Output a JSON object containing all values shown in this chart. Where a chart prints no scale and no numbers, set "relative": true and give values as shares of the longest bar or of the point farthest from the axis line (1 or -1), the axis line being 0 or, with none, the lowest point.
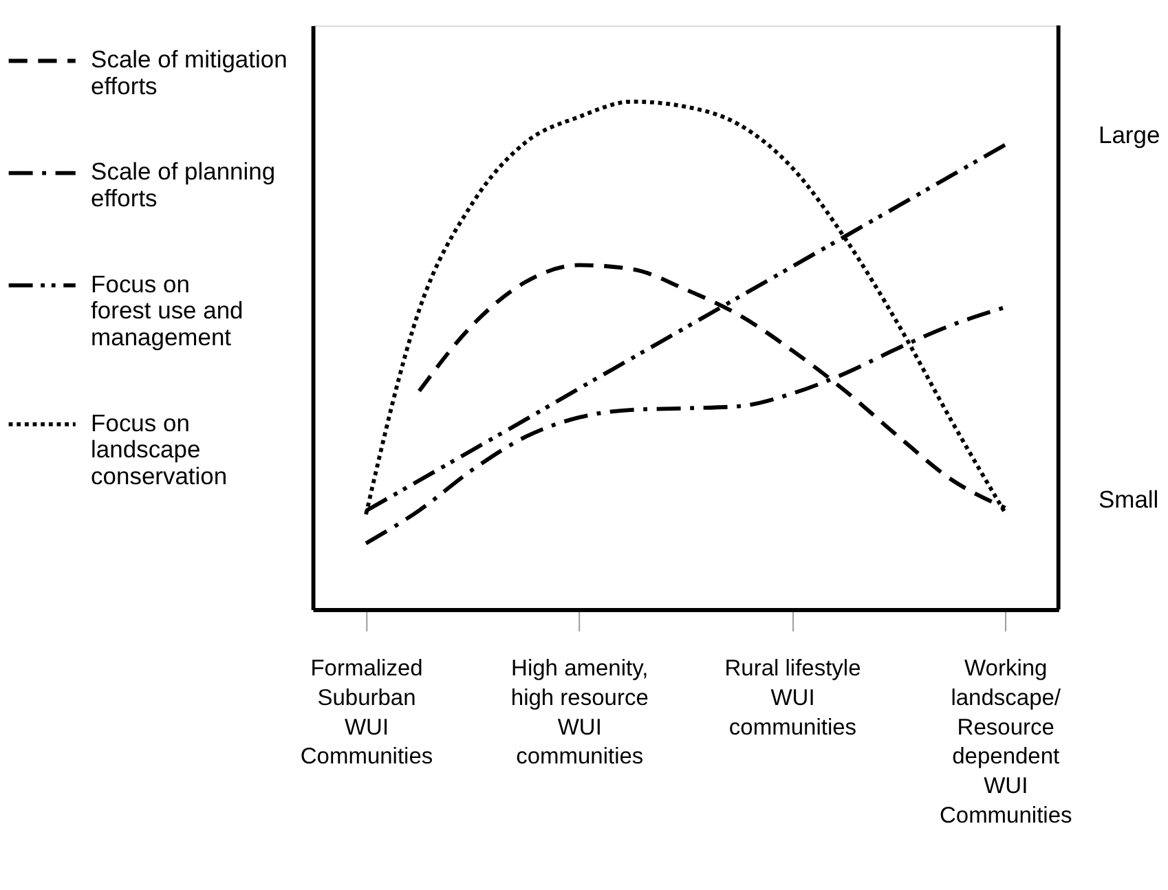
{
  "chart_data": {
    "type": "line",
    "relative": true,
    "legend": "left",
    "grid": false,
    "marker": "none",
    "categories": [
      "Formalized\nSuburban\nWUI\nCommunities",
      null,
      null,
      null,
      "High amenity,\nhigh resource\nWUI\ncommunities",
      null,
      null,
      null,
      "Rural lifestyle\nWUI\ncommunities",
      null,
      null,
      null,
      "Working\nlandscape/\nResource\ndependent\nWUI\nCommunities"
    ],
    "annotations": [
      "Large",
      "Small"
    ],
    "series": [
      {
        "name": "Scale of mitigation\nefforts",
        "color": "#000000",
        "line_style": "dashed",
        "values": [
          null,
          0.43,
          0.56,
          0.645,
          0.678,
          0.67,
          0.63,
          0.58,
          0.51,
          0.43,
          0.34,
          0.255,
          0.2
        ]
      },
      {
        "name": "Scale of planning\nefforts",
        "color": "#000000",
        "line_style": "dashdot",
        "values": [
          0.13,
          0.195,
          0.275,
          0.34,
          0.378,
          0.393,
          0.396,
          0.4,
          0.425,
          0.465,
          0.515,
          0.56,
          0.595
        ]
      },
      {
        "name": "Focus on\nforest use and\nmanagement",
        "color": "#000000",
        "line_style": "dashdotdot",
        "values": [
          0.194,
          0.254,
          0.314,
          0.374,
          0.435,
          0.495,
          0.555,
          0.615,
          0.675,
          0.735,
          0.795,
          0.855,
          0.915
        ]
      },
      {
        "name": "Focus on\nlandscape\nconservation",
        "color": "#000000",
        "line_style": "dotted",
        "values": [
          0.187,
          0.59,
          0.8,
          0.92,
          0.97,
          1.0,
          0.99,
          0.955,
          0.87,
          0.73,
          0.56,
          0.37,
          0.19
        ]
      }
    ]
  }
}
